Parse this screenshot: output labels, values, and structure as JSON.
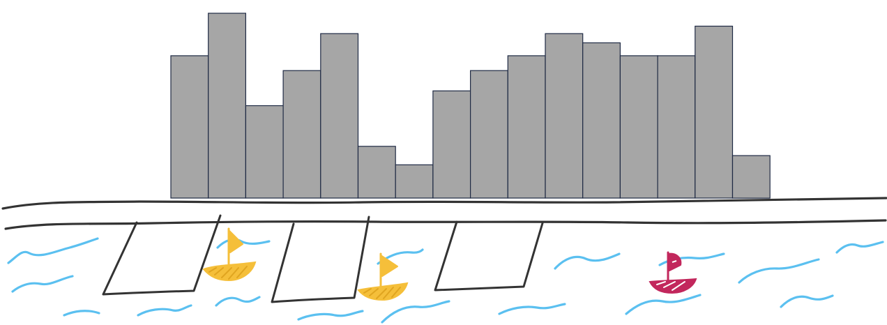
{
  "skyline": {
    "heights": [
      0.77,
      1.0,
      0.5,
      0.69,
      0.89,
      0.28,
      0.18,
      0.58,
      0.69,
      0.77,
      0.89,
      0.84,
      0.77,
      0.77,
      0.93,
      0.23
    ]
  },
  "colors": {
    "building_fill": "#a6a6a6",
    "building_outline": "#1f2a44",
    "water": "#5bc0f0",
    "road": "#333333",
    "sailboat_yellow": "#f5bf3a",
    "sailboat_magenta": "#c2275c"
  },
  "boats": [
    {
      "color": "yellow"
    },
    {
      "color": "yellow"
    },
    {
      "color": "magenta"
    }
  ],
  "piers": 3
}
